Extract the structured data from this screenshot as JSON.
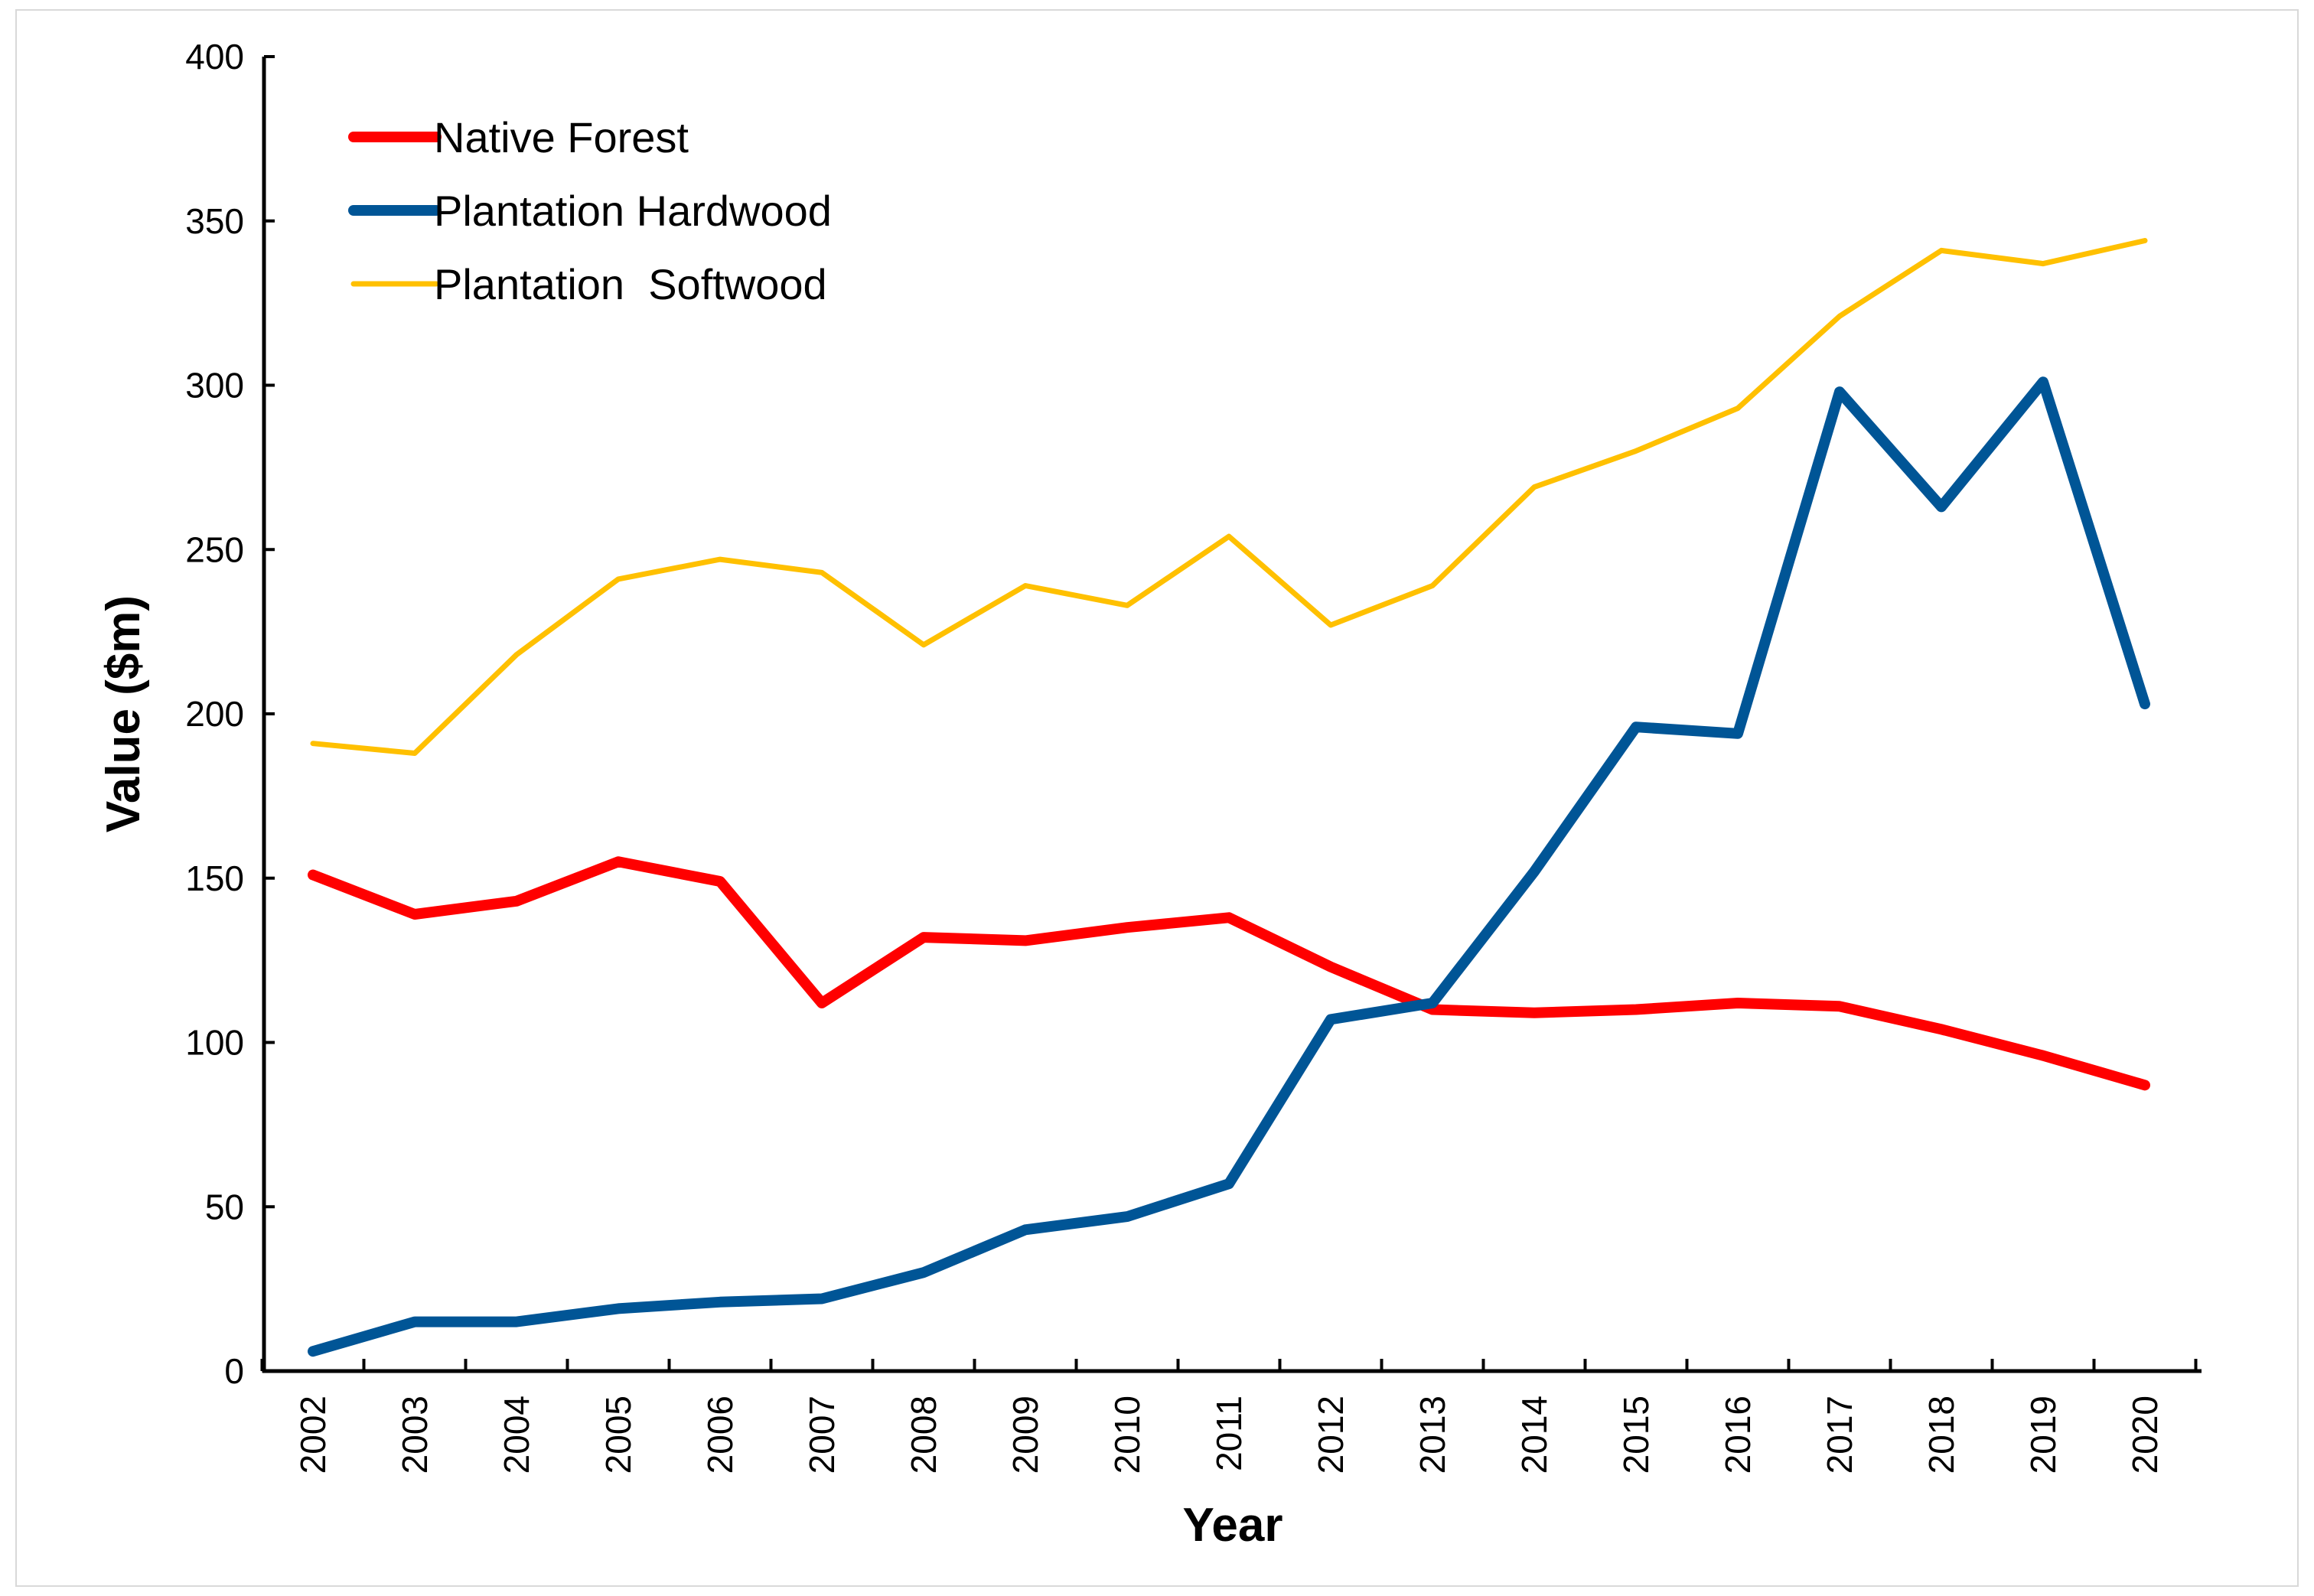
{
  "chart_data": {
    "type": "line",
    "title": "",
    "xlabel": "Year",
    "ylabel": "Value ($m)",
    "ylim": [
      0,
      400
    ],
    "yticks": [
      "0",
      "50",
      "100",
      "150",
      "200",
      "250",
      "300",
      "350",
      "400"
    ],
    "categories": [
      "2002",
      "2003",
      "2004",
      "2005",
      "2006",
      "2007",
      "2008",
      "2009",
      "2010",
      "2011",
      "2012",
      "2013",
      "2014",
      "2015",
      "2016",
      "2017",
      "2018",
      "2019",
      "2020"
    ],
    "grid": false,
    "legend_position": "top-left",
    "series": [
      {
        "name": "Native Forest",
        "color": "#ff0000",
        "values": [
          151,
          139,
          143,
          155,
          149,
          112,
          132,
          131,
          135,
          138,
          123,
          110,
          109,
          110,
          112,
          111,
          104,
          96,
          87
        ]
      },
      {
        "name": "Plantation Hardwood",
        "color": "#005596",
        "values": [
          6,
          15,
          15,
          19,
          21,
          22,
          30,
          43,
          47,
          57,
          107,
          112,
          152,
          196,
          194,
          298,
          263,
          301,
          203
        ]
      },
      {
        "name": "Plantation  Softwood",
        "color": "#ffc000",
        "values": [
          191,
          188,
          218,
          241,
          247,
          243,
          221,
          239,
          233,
          254,
          227,
          239,
          269,
          280,
          293,
          321,
          341,
          337,
          344
        ]
      }
    ]
  }
}
